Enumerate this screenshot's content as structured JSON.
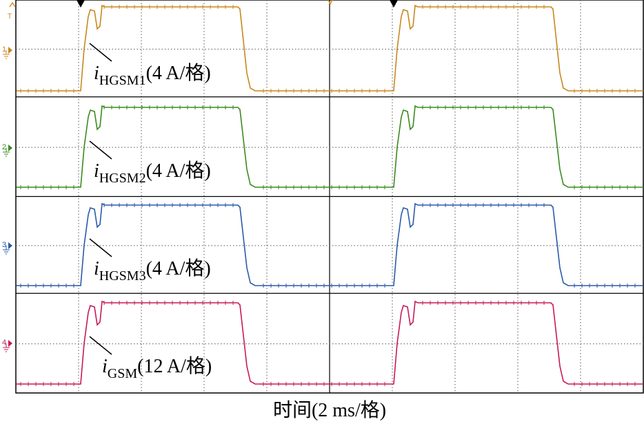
{
  "trigger_marker": "T",
  "channels": [
    {
      "marker": "1",
      "symbol": "i",
      "subscript": "HGSM1",
      "scale": "(4 A/格)"
    },
    {
      "marker": "2",
      "symbol": "i",
      "subscript": "HGSM2",
      "scale": "(4 A/格)"
    },
    {
      "marker": "3",
      "symbol": "i",
      "subscript": "HGSM3",
      "scale": "(4 A/格)"
    },
    {
      "marker": "4",
      "symbol": "i",
      "subscript": "GSM",
      "scale": "(12 A/格)"
    }
  ],
  "x_label": "时间(2 ms/格)"
}
